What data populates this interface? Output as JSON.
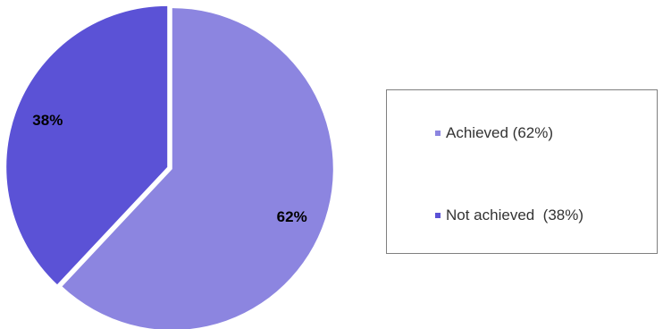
{
  "chart_data": {
    "type": "pie",
    "title": "",
    "slices": [
      {
        "label": "Achieved (62%)",
        "value": 62,
        "data_label": "62%",
        "color": "#8c85e0"
      },
      {
        "label": "Not achieved  (38%)",
        "value": 38,
        "data_label": "38%",
        "color": "#5b52d6"
      }
    ],
    "legend": {
      "placement": "right",
      "entries": [
        "Achieved (62%)",
        "Not achieved  (38%)"
      ]
    },
    "start_angle_deg": 0,
    "direction": "clockwise",
    "exploded": true
  }
}
